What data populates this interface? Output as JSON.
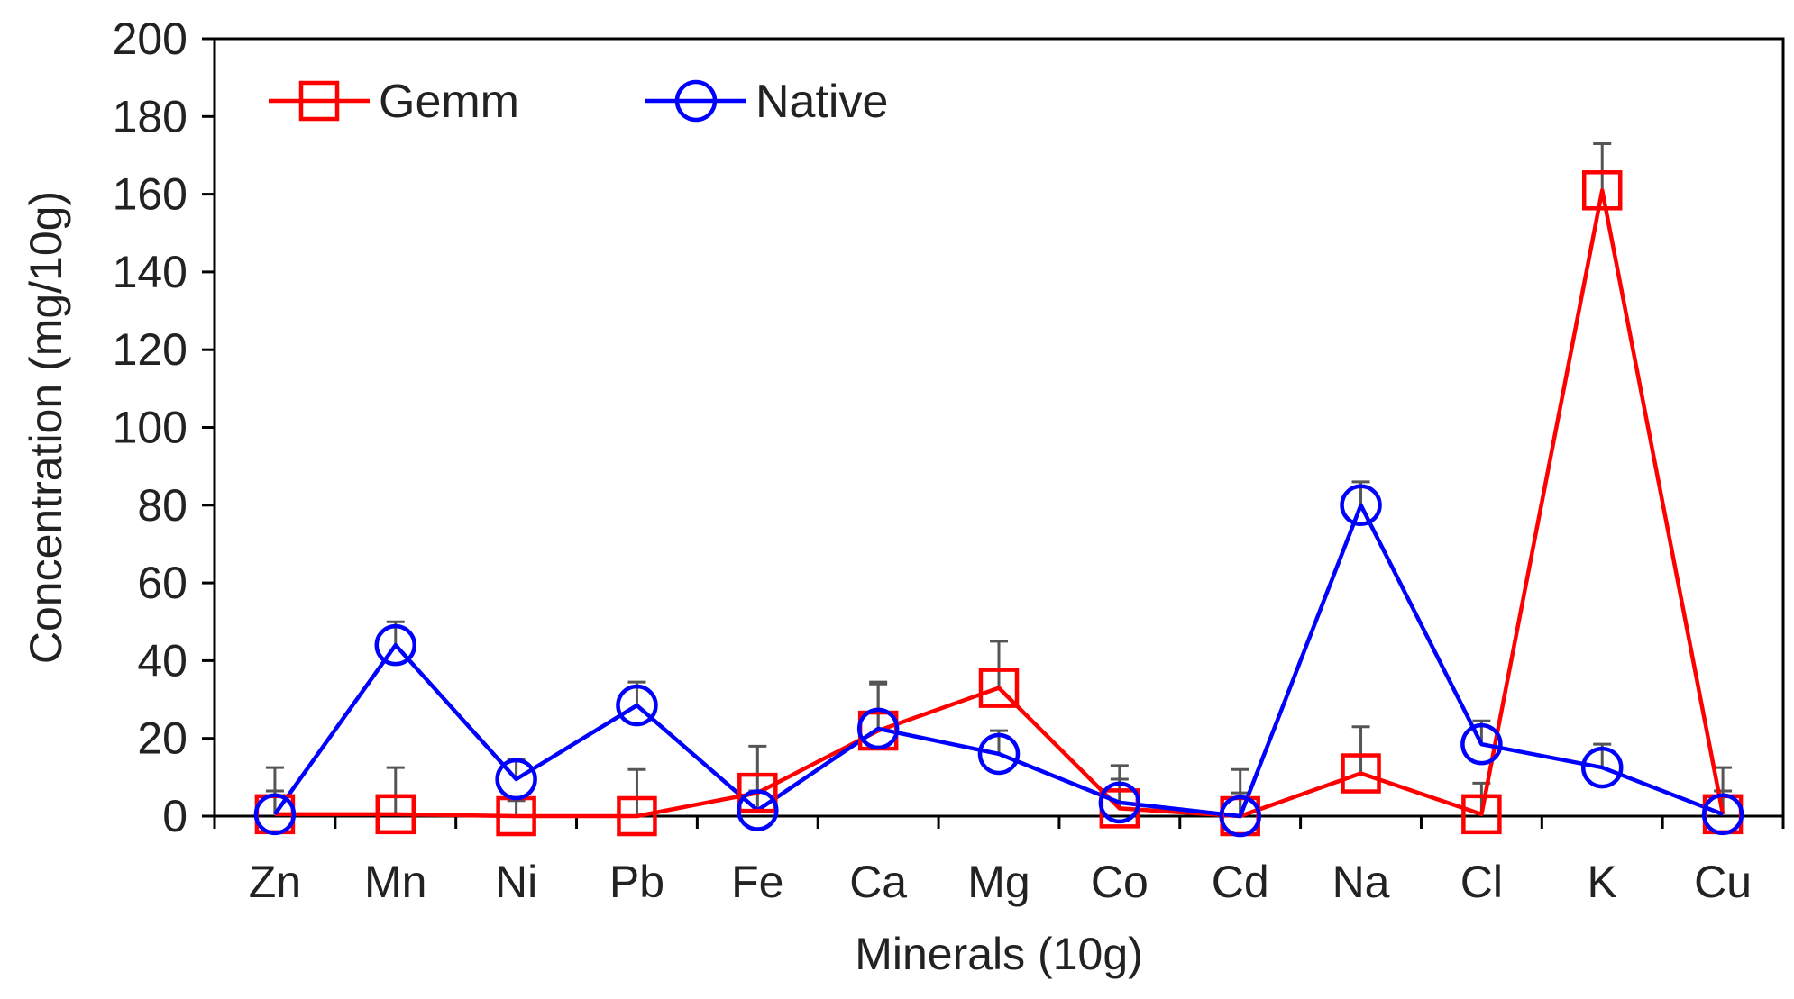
{
  "chart_data": {
    "type": "line",
    "title": "",
    "xlabel": "Minerals (10g)",
    "ylabel": "Concentration (mg/10g)",
    "ylim": [
      0,
      200
    ],
    "yticks": [
      0,
      20,
      40,
      60,
      80,
      100,
      120,
      140,
      160,
      180,
      200
    ],
    "ytick_labels": [
      "0",
      "20",
      "40",
      "60",
      "80",
      "100",
      "120",
      "140",
      "160",
      "180",
      "200"
    ],
    "grid": false,
    "legend_position": "top-left",
    "categories": [
      "Zn",
      "Mn",
      "Ni",
      "Pb",
      "Fe",
      "Ca",
      "Mg",
      "Co",
      "Cd",
      "Na",
      "Cl",
      "K",
      "Cu"
    ],
    "series": [
      {
        "name": "Gemm",
        "color": "#ff0000",
        "marker": "square",
        "values": [
          0.5,
          0.5,
          0,
          0,
          6,
          22,
          33,
          2,
          0,
          11,
          0.5,
          161,
          0.5
        ],
        "error": [
          12,
          12,
          4,
          12,
          12,
          12,
          12,
          11,
          12,
          12,
          8,
          12,
          12
        ]
      },
      {
        "name": "Native",
        "color": "#0000ff",
        "marker": "circle",
        "values": [
          0.5,
          44,
          9.5,
          28.5,
          1.5,
          22.5,
          16,
          3.5,
          0,
          80,
          18.5,
          12.5,
          0.5
        ],
        "error": [
          6,
          6,
          5,
          6,
          5,
          12,
          6,
          6,
          6,
          6,
          6,
          6,
          6
        ]
      }
    ]
  }
}
